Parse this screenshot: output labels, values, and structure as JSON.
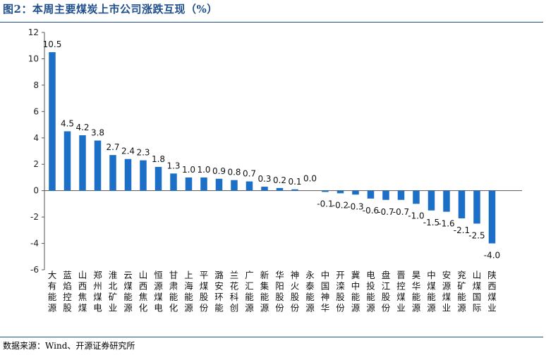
{
  "header": {
    "title": "图2：本周主要煤炭上市公司涨跌互现（%）"
  },
  "footer": {
    "source": "数据来源：Wind、开源证券研究所"
  },
  "chart_data": {
    "type": "bar",
    "title": "图2：本周主要煤炭上市公司涨跌互现（%）",
    "ylabel": "%",
    "ylim": [
      -6,
      12
    ],
    "yticks": [
      12,
      10,
      8,
      6,
      4,
      2,
      0,
      -2,
      -4,
      -6
    ],
    "grid": false,
    "legend": "none",
    "bar_color": "#1b6fc6",
    "categories": [
      "大有能源",
      "蓝焰控股",
      "山西焦煤",
      "郑州煤电",
      "淮北矿业",
      "云煤能源",
      "山西焦化",
      "恒源煤电",
      "甘肃能化",
      "上海能源",
      "平煤股份",
      "潞安环能",
      "兰花科创",
      "广汇能源",
      "新集能源",
      "华阳股份",
      "神火股份",
      "永泰能源",
      "中国神华",
      "开滦股份",
      "冀中能源",
      "电投能源",
      "盘江股份",
      "晋控煤业",
      "昊华能源",
      "中煤能源",
      "安源煤业",
      "兖矿能源",
      "山煤国际",
      "陕西煤业"
    ],
    "values": [
      10.5,
      4.5,
      4.2,
      3.8,
      2.7,
      2.4,
      2.3,
      1.8,
      1.3,
      1.0,
      1.0,
      0.9,
      0.8,
      0.7,
      0.3,
      0.2,
      0.1,
      0.0,
      -0.1,
      -0.2,
      -0.3,
      -0.6,
      -0.7,
      -0.7,
      -1.0,
      -1.5,
      -1.6,
      -2.1,
      -2.5,
      -4.0
    ],
    "value_labels": [
      "10.5",
      "4.5",
      "4.2",
      "3.8",
      "2.7",
      "2.4",
      "2.3",
      "1.8",
      "1.3",
      "1.0",
      "1.0",
      "0.9",
      "0.8",
      "0.7",
      "0.3",
      "0.2",
      "0.1",
      "0.0",
      "-0.1",
      "-0.2",
      "-0.3",
      "-0.6",
      "-0.7",
      "-0.7",
      "-1.0",
      "-1.5",
      "-1.6",
      "-2.1",
      "-2.5",
      "-4.0"
    ]
  }
}
